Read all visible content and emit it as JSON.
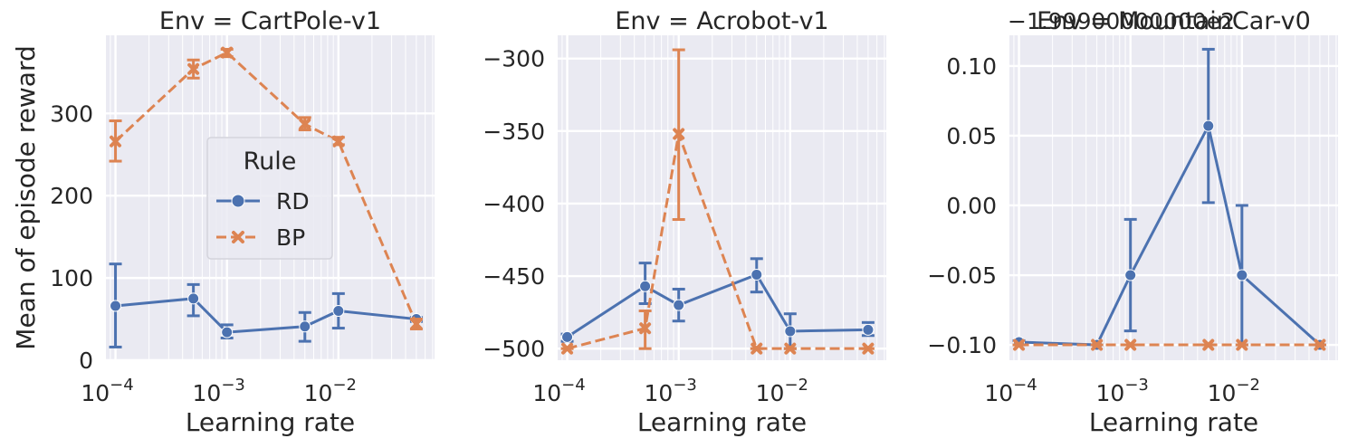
{
  "chart_data": [
    {
      "type": "line",
      "title": "Env = CartPole-v1",
      "xlabel": "Learning rate",
      "ylabel": "Mean of episode reward",
      "xscale": "log",
      "xlim": [
        8.21e-05,
        0.0728
      ],
      "ylim": [
        0,
        395
      ],
      "yticks": [
        0,
        100,
        200,
        300
      ],
      "ytick_labels": [
        "0",
        "100",
        "200",
        "300"
      ],
      "xticks": [
        0.0001,
        0.001,
        0.01
      ],
      "xtick_labels": [
        "10",
        "10",
        "10"
      ],
      "xtick_exponents": [
        "−4",
        "−3",
        "−2"
      ],
      "offset_text": "",
      "grid": true,
      "legend": {
        "title": "Rule",
        "position": "center",
        "entries": [
          "RD",
          "BP"
        ]
      },
      "series": [
        {
          "name": "RD",
          "color": "#4c72b0",
          "dash": "solid",
          "marker": "circle",
          "x": [
            0.0001,
            0.0005,
            0.001,
            0.005,
            0.01,
            0.05
          ],
          "y": [
            66,
            75,
            34,
            41,
            60,
            50
          ],
          "err_low": [
            16,
            54,
            27,
            23,
            39,
            47
          ],
          "err_high": [
            117,
            92,
            43,
            58,
            81,
            52
          ]
        },
        {
          "name": "BP",
          "color": "#dd8452",
          "dash": "dashed",
          "marker": "x",
          "x": [
            0.0001,
            0.0005,
            0.001,
            0.005,
            0.01,
            0.05
          ],
          "y": [
            266,
            354,
            374,
            287,
            266,
            44
          ],
          "err_low": [
            242,
            343,
            369,
            280,
            262,
            38
          ],
          "err_high": [
            291,
            365,
            378,
            295,
            271,
            50
          ]
        }
      ]
    },
    {
      "type": "line",
      "title": "Env = Acrobot-v1",
      "xlabel": "Learning rate",
      "ylabel": "",
      "xscale": "log",
      "xlim": [
        8.21e-05,
        0.0728
      ],
      "ylim": [
        -508,
        -284
      ],
      "yticks": [
        -500,
        -450,
        -400,
        -350,
        -300
      ],
      "ytick_labels": [
        "−500",
        "−450",
        "−400",
        "−350",
        "−300"
      ],
      "xticks": [
        0.0001,
        0.001,
        0.01
      ],
      "xtick_labels": [
        "10",
        "10",
        "10"
      ],
      "xtick_exponents": [
        "−4",
        "−3",
        "−2"
      ],
      "offset_text": "",
      "grid": true,
      "series": [
        {
          "name": "RD",
          "color": "#4c72b0",
          "dash": "solid",
          "marker": "circle",
          "x": [
            0.0001,
            0.0005,
            0.001,
            0.005,
            0.01,
            0.05
          ],
          "y": [
            -492,
            -457,
            -470,
            -449,
            -488,
            -487
          ],
          "err_low": [
            -495,
            -469,
            -481,
            -461,
            -500,
            -491
          ],
          "err_high": [
            -490,
            -441,
            -459,
            -438,
            -476,
            -482
          ]
        },
        {
          "name": "BP",
          "color": "#dd8452",
          "dash": "dashed",
          "marker": "x",
          "x": [
            0.0001,
            0.0005,
            0.001,
            0.005,
            0.01,
            0.05
          ],
          "y": [
            -500,
            -486,
            -352,
            -500,
            -500,
            -500
          ],
          "err_low": [
            -500,
            -500,
            -411,
            -500,
            -500,
            -500
          ],
          "err_high": [
            -500,
            -474,
            -294,
            -500,
            -500,
            -500
          ]
        }
      ]
    },
    {
      "type": "line",
      "title": "Env = MountainCar-v0",
      "xlabel": "Learning rate",
      "ylabel": "",
      "xscale": "log",
      "xlim": [
        8.21e-05,
        0.0728
      ],
      "ylim": [
        -0.111,
        0.122
      ],
      "yticks": [
        -0.1,
        -0.05,
        0.0,
        0.05,
        0.1
      ],
      "ytick_labels": [
        "−0.10",
        "−0.05",
        "0.00",
        "0.05",
        "0.10"
      ],
      "xticks": [
        0.0001,
        0.001,
        0.01
      ],
      "xtick_labels": [
        "10",
        "10",
        "10"
      ],
      "xtick_exponents": [
        "−4",
        "−3",
        "−2"
      ],
      "offset_text": "−1.99900000000e2",
      "grid": true,
      "series": [
        {
          "name": "RD",
          "color": "#4c72b0",
          "dash": "solid",
          "marker": "circle",
          "x": [
            0.0001,
            0.0005,
            0.001,
            0.005,
            0.01,
            0.05
          ],
          "y": [
            -0.098,
            -0.1,
            -0.05,
            0.057,
            -0.05,
            -0.1
          ],
          "err_low": [
            -0.1,
            -0.1,
            -0.09,
            0.002,
            -0.1,
            -0.1
          ],
          "err_high": [
            -0.097,
            -0.1,
            -0.01,
            0.112,
            0.0,
            -0.1
          ]
        },
        {
          "name": "BP",
          "color": "#dd8452",
          "dash": "dashed",
          "marker": "x",
          "x": [
            0.0001,
            0.0005,
            0.001,
            0.005,
            0.01,
            0.05
          ],
          "y": [
            -0.1,
            -0.1,
            -0.1,
            -0.1,
            -0.1,
            -0.1
          ],
          "err_low": [
            -0.1,
            -0.1,
            -0.1,
            -0.1,
            -0.1,
            -0.1
          ],
          "err_high": [
            -0.1,
            -0.1,
            -0.1,
            -0.1,
            -0.1,
            -0.1
          ]
        }
      ]
    }
  ]
}
